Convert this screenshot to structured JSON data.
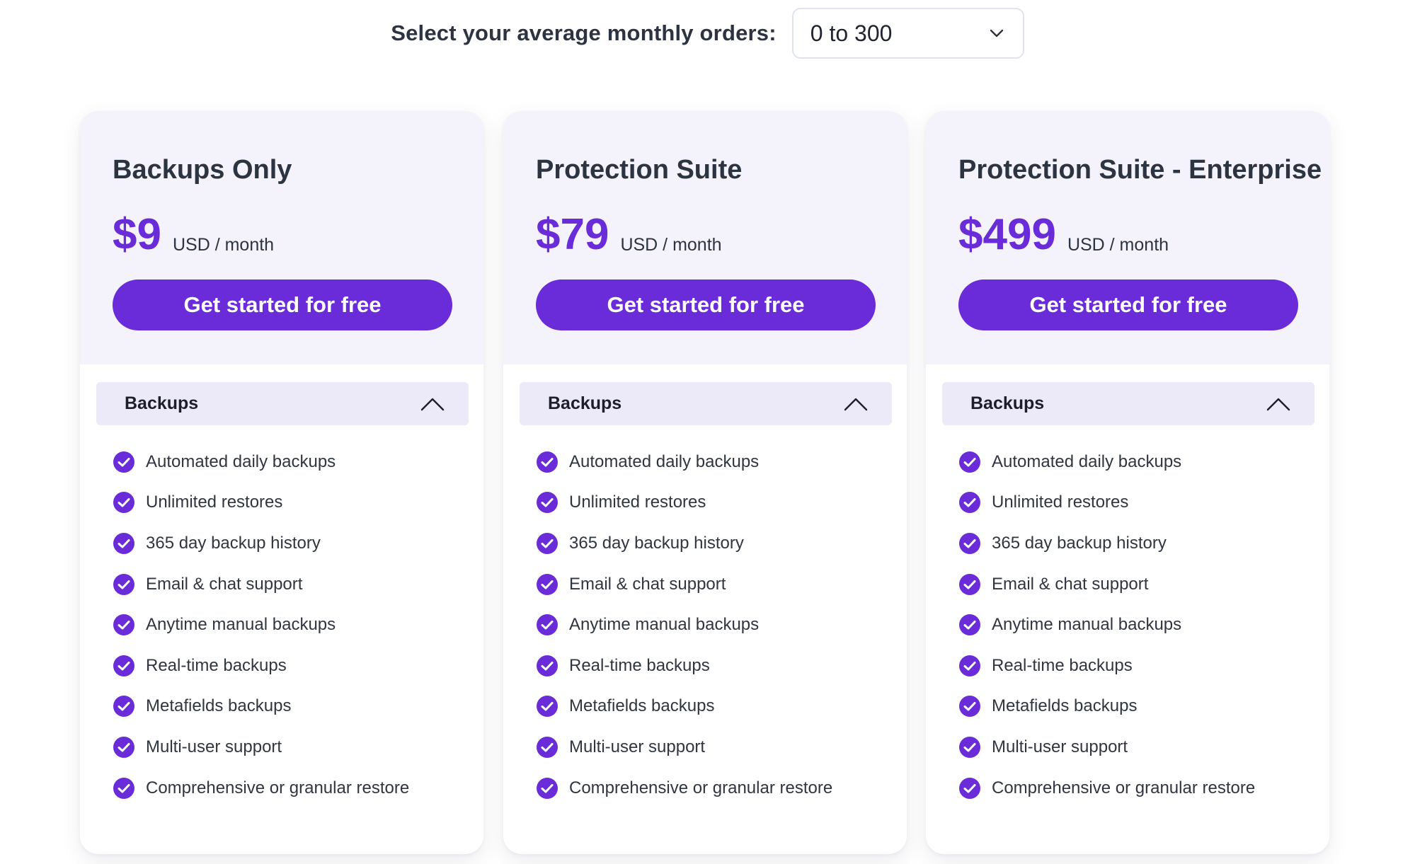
{
  "order_selector": {
    "label": "Select your average monthly orders:",
    "selected_value": "0 to 300",
    "icon": "chevron-down-icon"
  },
  "colors": {
    "accent": "#6a2bd8",
    "card_header_bg": "#f4f2fa",
    "section_header_bg": "#ece9f8",
    "text": "#2b3440"
  },
  "plans": [
    {
      "name": "Backups Only",
      "price": "$9",
      "price_unit": "USD / month",
      "cta_label": "Get started for free",
      "section": {
        "title": "Backups",
        "icon": "chevron-up-icon",
        "features": [
          "Automated daily backups",
          "Unlimited restores",
          "365 day backup history",
          "Email & chat support",
          "Anytime manual backups",
          "Real-time backups",
          "Metafields backups",
          "Multi-user support",
          "Comprehensive or granular restore"
        ]
      }
    },
    {
      "name": "Protection Suite",
      "price": "$79",
      "price_unit": "USD / month",
      "cta_label": "Get started for free",
      "section": {
        "title": "Backups",
        "icon": "chevron-up-icon",
        "features": [
          "Automated daily backups",
          "Unlimited restores",
          "365 day backup history",
          "Email & chat support",
          "Anytime manual backups",
          "Real-time backups",
          "Metafields backups",
          "Multi-user support",
          "Comprehensive or granular restore"
        ]
      }
    },
    {
      "name": "Protection Suite - Enterprise",
      "price": "$499",
      "price_unit": "USD / month",
      "cta_label": "Get started for free",
      "section": {
        "title": "Backups",
        "icon": "chevron-up-icon",
        "features": [
          "Automated daily backups",
          "Unlimited restores",
          "365 day backup history",
          "Email & chat support",
          "Anytime manual backups",
          "Real-time backups",
          "Metafields backups",
          "Multi-user support",
          "Comprehensive or granular restore"
        ]
      }
    }
  ]
}
